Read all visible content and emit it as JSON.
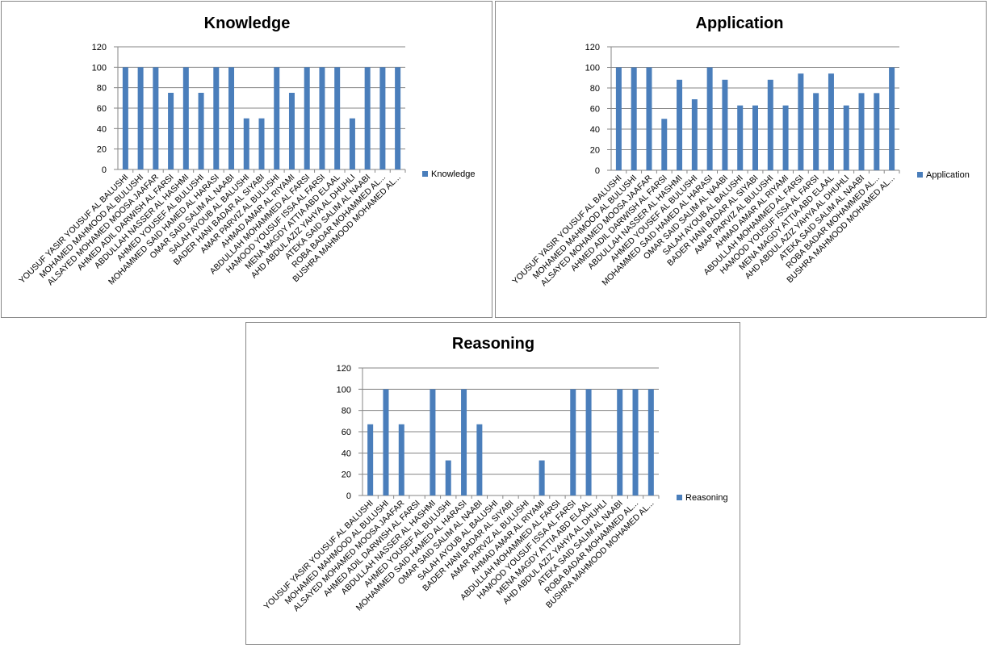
{
  "chart_data": [
    {
      "type": "bar",
      "title": "Knowledge",
      "xlabel": "",
      "ylabel": "",
      "ylim": [
        0,
        120
      ],
      "yticks": [
        0,
        20,
        40,
        60,
        80,
        100,
        120
      ],
      "grid": true,
      "legend_position": "right",
      "categories": [
        "YOUSUF YASIR YOUSUF AL BALUSHI",
        "MOHAMED MAHMOOD AL BULUSHI",
        "ALSAYED MOHAMED  MOOSA JAAFAR",
        "AHMED ADIL DARWISH  AL FARSI",
        "ABDULLAH NASSER  AL HASHMI",
        "AHMED YOUSEF  AL BULUSHI",
        "MOHAMMED SAID HAMED AL HARASI",
        "OMAR SAID SALIM AL NAABI",
        "SALAH AYOUB  AL BALUSHI",
        "BADER HANI BADAR  AL SIYABI",
        "AMAR PARVIZ  AL BULUSHI",
        "AHMAD AMAR  AL RIYAMI",
        "ABDULLAH MOHAMMED AL FARSI",
        "HAMOOD YOUSUF ISSA AL FARSI",
        "MENA MAGDY ATTIA  ABD  ELAAL",
        "AHD ABDUL AZIZ  YAHYA  AL DHUHLI",
        "ATEKA SAID SALIM AL NAABI",
        "ROBA BADAR MOHAMMED AL...",
        "BUSHRA MAHMOOD MOHAMED AL..."
      ],
      "series": [
        {
          "name": "Knowledge",
          "color": "#4a7ebb",
          "values": [
            100,
            100,
            100,
            75,
            100,
            75,
            100,
            100,
            50,
            50,
            100,
            75,
            100,
            100,
            100,
            50,
            100,
            100,
            100
          ]
        }
      ]
    },
    {
      "type": "bar",
      "title": "Application",
      "xlabel": "",
      "ylabel": "",
      "ylim": [
        0,
        120
      ],
      "yticks": [
        0,
        20,
        40,
        60,
        80,
        100,
        120
      ],
      "grid": true,
      "legend_position": "right",
      "categories": [
        "YOUSUF YASIR YOUSUF AL BALUSHI",
        "MOHAMED MAHMOOD AL BULUSHI",
        "ALSAYED MOHAMED  MOOSA JAAFAR",
        "AHMED ADIL DARWISH  AL FARSI",
        "ABDULLAH NASSER  AL HASHMI",
        "AHMED YOUSEF  AL BULUSHI",
        "MOHAMMED SAID HAMED AL HARASI",
        "OMAR SAID SALIM AL NAABI",
        "SALAH AYOUB  AL BALUSHI",
        "BADER HANI BADAR  AL SIYABI",
        "AMAR PARVIZ  AL BULUSHI",
        "AHMAD AMAR  AL RIYAMI",
        "ABDULLAH MOHAMMED AL FARSI",
        "HAMOOD YOUSUF ISSA AL FARSI",
        "MENA MAGDY ATTIA  ABD  ELAAL",
        "AHD ABDUL AZIZ  YAHYA  AL DHUHLI",
        "ATEKA SAID SALIM AL NAABI",
        "ROBA BADAR MOHAMMED AL...",
        "BUSHRA MAHMOOD MOHAMED AL..."
      ],
      "series": [
        {
          "name": "Application",
          "color": "#4a7ebb",
          "values": [
            100,
            100,
            100,
            50,
            88,
            69,
            100,
            88,
            63,
            63,
            88,
            63,
            94,
            75,
            94,
            63,
            75,
            75,
            100
          ]
        }
      ]
    },
    {
      "type": "bar",
      "title": "Reasoning",
      "xlabel": "",
      "ylabel": "",
      "ylim": [
        0,
        120
      ],
      "yticks": [
        0,
        20,
        40,
        60,
        80,
        100,
        120
      ],
      "grid": true,
      "legend_position": "right",
      "categories": [
        "YOUSUF YASIR YOUSUF AL BALUSHI",
        "MOHAMED MAHMOOD AL BULUSHI",
        "ALSAYED MOHAMED  MOOSA JAAFAR",
        "AHMED ADIL DARWISH  AL FARSI",
        "ABDULLAH NASSER  AL HASHMI",
        "AHMED YOUSEF  AL BULUSHI",
        "MOHAMMED SAID HAMED AL HARASI",
        "OMAR SAID SALIM AL NAABI",
        "SALAH AYOUB  AL BALUSHI",
        "BADER HANI BADAR  AL SIYABI",
        "AMAR PARVIZ  AL BULUSHI",
        "AHMAD AMAR  AL RIYAMI",
        "ABDULLAH MOHAMMED AL FARSI",
        "HAMOOD YOUSUF ISSA AL FARSI",
        "MENA MAGDY ATTIA  ABD  ELAAL",
        "AHD ABDUL AZIZ  YAHYA  AL DHUHLI",
        "ATEKA SAID SALIM AL NAABI",
        "ROBA BADAR MOHAMMED AL...",
        "BUSHRA MAHMOOD MOHAMED AL..."
      ],
      "series": [
        {
          "name": "Reasoning",
          "color": "#4a7ebb",
          "values": [
            67,
            100,
            67,
            0,
            100,
            33,
            100,
            67,
            0,
            0,
            0,
            33,
            0,
            100,
            100,
            0,
            100,
            100,
            100
          ]
        }
      ]
    }
  ]
}
